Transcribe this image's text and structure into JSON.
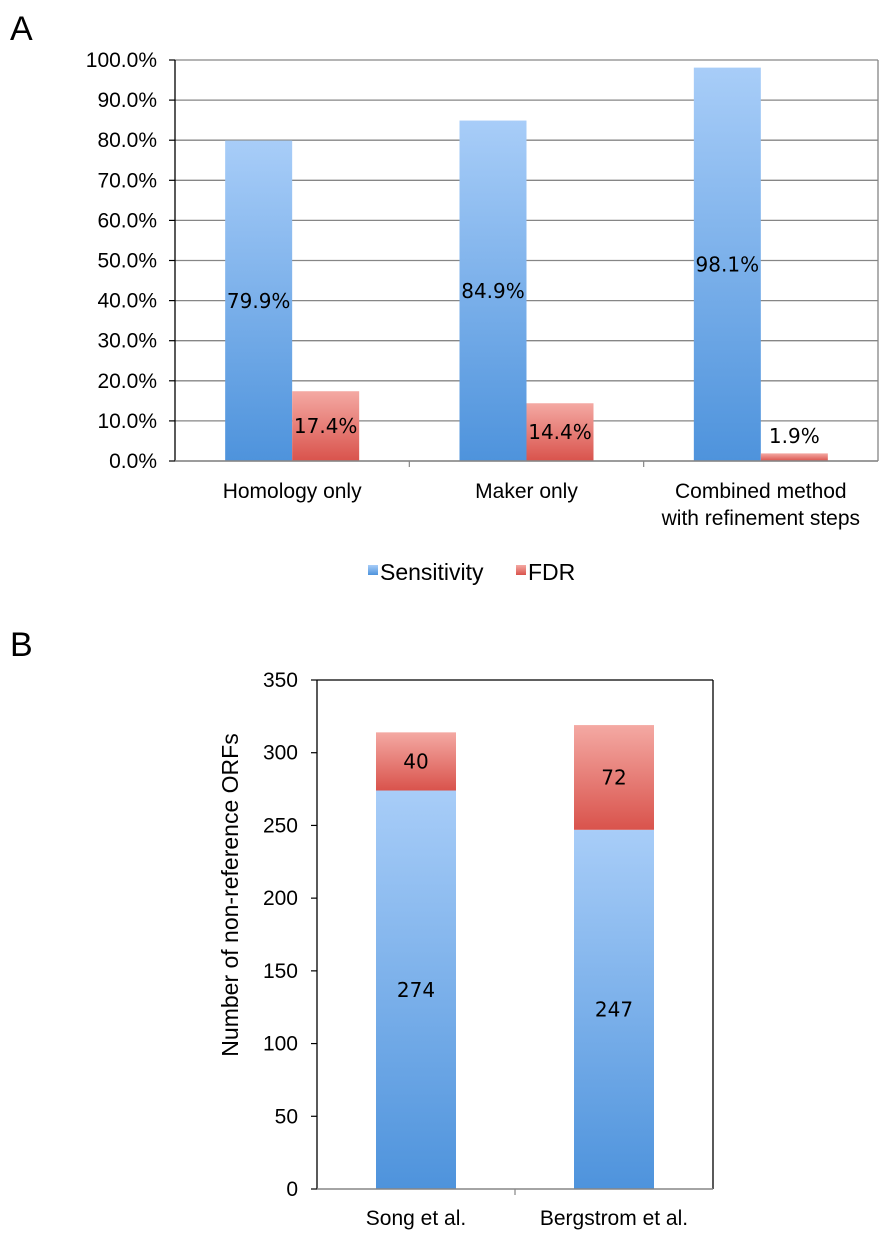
{
  "colors": {
    "sensitivity_top": "#a8cdf8",
    "sensitivity_bottom": "#4e93dc",
    "fdr_top": "#f4a9a3",
    "fdr_bottom": "#d9534c",
    "grid": "#868686",
    "axis": "#000000"
  },
  "chart_data": [
    {
      "panel": "A",
      "type": "bar",
      "categories": [
        "Homology only",
        "Maker only",
        "Combined method with refinement steps"
      ],
      "category_lines": [
        [
          "Homology only"
        ],
        [
          "Maker only"
        ],
        [
          "Combined method",
          "with refinement steps"
        ]
      ],
      "series": [
        {
          "name": "Sensitivity",
          "values": [
            79.9,
            84.9,
            98.1
          ],
          "labels": [
            "79.9%",
            "84.9%",
            "98.1%"
          ]
        },
        {
          "name": "FDR",
          "values": [
            17.4,
            14.4,
            1.9
          ],
          "labels": [
            "17.4%",
            "14.4%",
            "1.9%"
          ]
        }
      ],
      "yticks": [
        "0.0%",
        "10.0%",
        "20.0%",
        "30.0%",
        "40.0%",
        "50.0%",
        "60.0%",
        "70.0%",
        "80.0%",
        "90.0%",
        "100.0%"
      ],
      "ylim": [
        0,
        100
      ],
      "grid": true,
      "legend": "bottom"
    },
    {
      "panel": "B",
      "type": "bar",
      "stacked": true,
      "categories": [
        "Song et al.",
        "Bergstrom et al."
      ],
      "series": [
        {
          "values": [
            274,
            247
          ],
          "labels": [
            "274",
            "247"
          ]
        },
        {
          "values": [
            40,
            72
          ],
          "labels": [
            "40",
            "72"
          ]
        }
      ],
      "yticks": [
        "0",
        "50",
        "100",
        "150",
        "200",
        "250",
        "300",
        "350"
      ],
      "ylim": [
        0,
        350
      ],
      "ylabel": "Number of non-reference ORFs",
      "grid": false
    }
  ]
}
